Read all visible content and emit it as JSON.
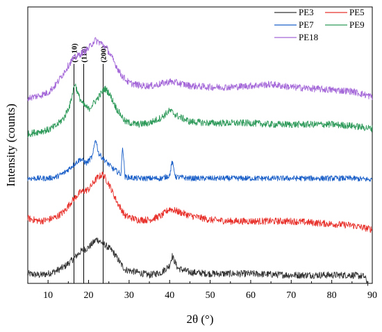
{
  "chart_data": {
    "type": "line",
    "title": "",
    "xlabel": "2θ (°)",
    "ylabel": "Intensity (counts)",
    "xlim": [
      5,
      90
    ],
    "xticks": [
      10,
      20,
      30,
      40,
      50,
      60,
      70,
      80,
      90
    ],
    "yticks_shown": false,
    "grid": false,
    "legend": {
      "placement": "top-right",
      "columns": 2,
      "entries": [
        "PE3",
        "PE5",
        "PE7",
        "PE9",
        "PE18"
      ]
    },
    "reference_lines": [
      {
        "x": 16.4,
        "label": "(1-10)"
      },
      {
        "x": 18.8,
        "label": "(110)"
      },
      {
        "x": 23.6,
        "label": "(200)"
      }
    ],
    "series": [
      {
        "name": "PE3",
        "color": "#333333",
        "baseline": 0.5,
        "noise": 0.25,
        "x": [
          5,
          8,
          10,
          12,
          14,
          16,
          18,
          20,
          22,
          24,
          26,
          28,
          29,
          32,
          35,
          38,
          40,
          40.6,
          42,
          45,
          50,
          55,
          60,
          65,
          70,
          75,
          80,
          85,
          88,
          89
        ],
        "y": [
          0.7,
          0.6,
          0.7,
          0.9,
          1.2,
          1.7,
          2.3,
          2.6,
          3.2,
          2.8,
          2.3,
          1.4,
          1.0,
          0.8,
          0.6,
          0.8,
          1.3,
          2.0,
          1.1,
          0.8,
          0.7,
          0.7,
          0.7,
          0.65,
          0.6,
          0.6,
          0.6,
          0.6,
          0.5,
          0.0
        ]
      },
      {
        "name": "PE5",
        "color": "#e8302a",
        "baseline": 3.0,
        "noise": 0.25,
        "x": [
          5,
          8,
          10,
          12,
          14,
          16,
          18,
          20,
          22,
          23.5,
          25,
          27,
          29,
          32,
          35,
          38,
          40,
          42,
          45,
          50,
          55,
          60,
          65,
          70,
          75,
          80,
          85,
          90
        ],
        "y": [
          4.7,
          4.5,
          4.6,
          4.8,
          5.2,
          6.0,
          6.6,
          6.8,
          7.6,
          7.9,
          7.2,
          5.9,
          4.9,
          4.6,
          4.6,
          4.9,
          5.4,
          5.2,
          4.9,
          4.6,
          4.5,
          4.5,
          4.5,
          4.5,
          4.4,
          4.3,
          4.2,
          3.9
        ]
      },
      {
        "name": "PE7",
        "color": "#1a5fc8",
        "baseline": 6.0,
        "noise": 0.2,
        "x": [
          5,
          8,
          10,
          12,
          14,
          16,
          18,
          19.5,
          21,
          21.7,
          22.5,
          24,
          26,
          28,
          28.4,
          29,
          32,
          35,
          38,
          40,
          40.6,
          41.5,
          45,
          50,
          55,
          60,
          65,
          70,
          75,
          80,
          85,
          90
        ],
        "y": [
          7.6,
          7.6,
          7.6,
          7.7,
          8.0,
          8.5,
          9.0,
          8.7,
          9.2,
          10.5,
          9.4,
          8.9,
          8.3,
          7.9,
          10.0,
          7.7,
          7.6,
          7.6,
          7.6,
          7.8,
          8.8,
          7.7,
          7.6,
          7.6,
          7.6,
          7.6,
          7.6,
          7.6,
          7.6,
          7.6,
          7.6,
          7.5
        ]
      },
      {
        "name": "PE9",
        "color": "#2e9a5a",
        "baseline": 9.0,
        "noise": 0.25,
        "x": [
          5,
          8,
          10,
          12,
          14,
          15.5,
          16.6,
          17.5,
          18.5,
          20,
          22,
          24,
          25,
          27,
          28.4,
          29,
          32,
          35,
          38,
          40,
          42,
          45,
          50,
          55,
          60,
          65,
          70,
          75,
          80,
          85,
          90
        ],
        "y": [
          10.8,
          11.0,
          11.1,
          11.4,
          12.0,
          13.0,
          14.5,
          13.6,
          13.0,
          12.6,
          13.3,
          14.1,
          13.8,
          12.6,
          12.0,
          11.7,
          11.5,
          11.6,
          12.0,
          12.5,
          12.1,
          11.7,
          11.6,
          11.6,
          11.6,
          11.5,
          11.5,
          11.5,
          11.5,
          11.4,
          11.2
        ]
      },
      {
        "name": "PE18",
        "color": "#a468d8",
        "baseline": 12.0,
        "noise": 0.25,
        "x": [
          5,
          8,
          10,
          12,
          14,
          16,
          18,
          20,
          21.5,
          23,
          24.5,
          26,
          28,
          30,
          33,
          36,
          40,
          42,
          45,
          50,
          55,
          60,
          65,
          70,
          75,
          80,
          85,
          90
        ],
        "y": [
          13.4,
          13.6,
          13.8,
          14.4,
          15.3,
          16.2,
          16.6,
          17.0,
          17.6,
          17.4,
          17.0,
          16.2,
          15.1,
          14.5,
          14.3,
          14.3,
          14.6,
          14.5,
          14.3,
          14.2,
          14.2,
          14.3,
          14.4,
          14.2,
          14.1,
          14.0,
          13.9,
          13.5
        ]
      }
    ],
    "yrange": [
      0,
      20
    ]
  }
}
